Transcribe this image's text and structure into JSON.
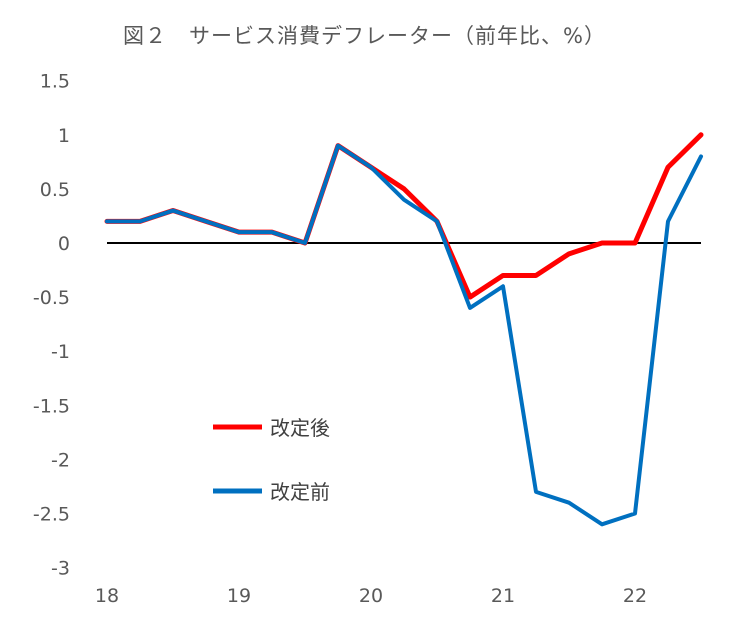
{
  "chart_data": {
    "type": "line",
    "title": "図２　サービス消費デフレーター（前年比、%）",
    "xlabel": "",
    "ylabel": "",
    "ylim": [
      -3,
      1.5
    ],
    "yticks": [
      1.5,
      1,
      0.5,
      0,
      -0.5,
      -1,
      -1.5,
      -2,
      -2.5,
      -3
    ],
    "ytick_labels": [
      "1.5",
      "1",
      "0.5",
      "0",
      "-0.5",
      "-1",
      "-1.5",
      "-2",
      "-2.5",
      "-3"
    ],
    "x": [
      "18Q1",
      "18Q2",
      "18Q3",
      "18Q4",
      "19Q1",
      "19Q2",
      "19Q3",
      "19Q4",
      "20Q1",
      "20Q2",
      "20Q3",
      "20Q4",
      "21Q1",
      "21Q2",
      "21Q3",
      "21Q4",
      "22Q1",
      "22Q2",
      "22Q3"
    ],
    "xtick_labels": [
      {
        "index": 0,
        "label": "18"
      },
      {
        "index": 4,
        "label": "19"
      },
      {
        "index": 8,
        "label": "20"
      },
      {
        "index": 12,
        "label": "21"
      },
      {
        "index": 16,
        "label": "22"
      }
    ],
    "grid": false,
    "legend_position": "bottom-left",
    "series": [
      {
        "name": "改定後",
        "color": "#ff0000",
        "values": [
          0.2,
          0.2,
          0.3,
          0.2,
          0.1,
          0.1,
          0.0,
          0.9,
          0.7,
          0.5,
          0.2,
          -0.5,
          -0.3,
          -0.3,
          -0.1,
          0.0,
          0.0,
          0.7,
          1.0
        ]
      },
      {
        "name": "改定前",
        "color": "#0070c0",
        "values": [
          0.2,
          0.2,
          0.3,
          0.2,
          0.1,
          0.1,
          0.0,
          0.9,
          0.7,
          0.4,
          0.2,
          -0.6,
          -0.4,
          -2.3,
          -2.4,
          -2.6,
          -2.5,
          0.2,
          0.8
        ]
      }
    ]
  }
}
